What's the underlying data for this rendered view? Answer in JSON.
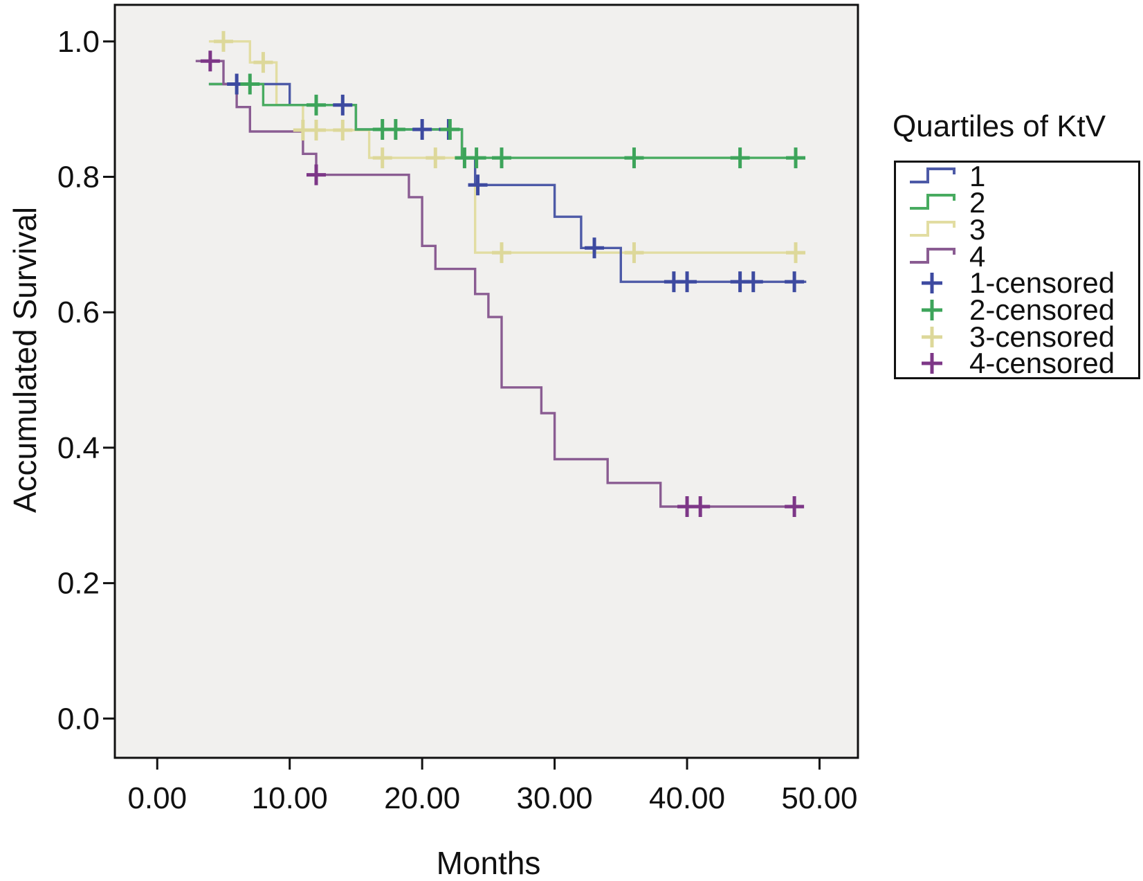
{
  "figure": {
    "y_axis_title": "Accumulated Survival",
    "x_axis_title": "Months",
    "legend_title": "Quartiles of KtV"
  },
  "chart_data": {
    "type": "line",
    "subtype": "kaplan-meier-step-survival",
    "title": "",
    "xlabel": "Months",
    "ylabel": "Accumulated Survival",
    "xlim": [
      -3.2,
      52.9
    ],
    "ylim": [
      -0.058,
      1.054
    ],
    "grid": false,
    "plot_bg": "#f1f0ee",
    "frame_color": "#111111",
    "xticks": {
      "values": [
        0,
        10,
        20,
        30,
        40,
        50
      ],
      "labels": [
        "0.00",
        "10.00",
        "20.00",
        "30.00",
        "40.00",
        "50.00"
      ]
    },
    "yticks": {
      "values": [
        0.0,
        0.2,
        0.4,
        0.6,
        0.8,
        1.0
      ],
      "labels": [
        "0.0",
        "0.2",
        "0.4",
        "0.6",
        "0.8",
        "1.0"
      ]
    },
    "legend": {
      "title": "Quartiles of KtV",
      "position": "right",
      "entries": [
        {
          "label": "1",
          "marker": "step",
          "color": "#4d5aa7"
        },
        {
          "label": "2",
          "marker": "step",
          "color": "#48ab60"
        },
        {
          "label": "3",
          "marker": "step",
          "color": "#e2dda2"
        },
        {
          "label": "4",
          "marker": "step",
          "color": "#8a5c92"
        },
        {
          "label": "1-censored",
          "marker": "plus",
          "color": "#3d4aa0"
        },
        {
          "label": "2-censored",
          "marker": "plus",
          "color": "#3da45a"
        },
        {
          "label": "3-censored",
          "marker": "plus",
          "color": "#ddd89a"
        },
        {
          "label": "4-censored",
          "marker": "plus",
          "color": "#7d3787"
        }
      ]
    },
    "series": [
      {
        "name": "1",
        "color": "#4d5aa7",
        "censor_color": "#3d4aa0",
        "points": [
          [
            3.9,
            0.937
          ],
          [
            10,
            0.906
          ],
          [
            15,
            0.87
          ],
          [
            23,
            0.828
          ],
          [
            24,
            0.788
          ],
          [
            30,
            0.741
          ],
          [
            32,
            0.695
          ],
          [
            35,
            0.645
          ],
          [
            49,
            0.645
          ]
        ],
        "censored": [
          [
            6,
            0.937
          ],
          [
            14,
            0.906
          ],
          [
            20,
            0.87
          ],
          [
            22,
            0.87
          ],
          [
            24.2,
            0.788
          ],
          [
            33,
            0.695
          ],
          [
            39,
            0.645
          ],
          [
            40,
            0.645
          ],
          [
            44,
            0.645
          ],
          [
            45,
            0.645
          ],
          [
            48.1,
            0.645
          ]
        ]
      },
      {
        "name": "2",
        "color": "#48ab60",
        "censor_color": "#3da45a",
        "points": [
          [
            3.9,
            0.937
          ],
          [
            8,
            0.906
          ],
          [
            15,
            0.87
          ],
          [
            23,
            0.828
          ],
          [
            48.4,
            0.828
          ]
        ],
        "censored": [
          [
            7,
            0.937
          ],
          [
            12,
            0.906
          ],
          [
            17,
            0.87
          ],
          [
            18,
            0.87
          ],
          [
            22.1,
            0.87
          ],
          [
            23.2,
            0.828
          ],
          [
            24.1,
            0.828
          ],
          [
            26,
            0.828
          ],
          [
            36,
            0.828
          ],
          [
            44,
            0.828
          ],
          [
            48.2,
            0.828
          ]
        ]
      },
      {
        "name": "3",
        "color": "#e2dda2",
        "censor_color": "#ddd89a",
        "points": [
          [
            3.9,
            1.0
          ],
          [
            7,
            0.969
          ],
          [
            9,
            0.906
          ],
          [
            11,
            0.869
          ],
          [
            16,
            0.828
          ],
          [
            24,
            0.688
          ],
          [
            48.4,
            0.688
          ]
        ],
        "censored": [
          [
            5,
            1.0
          ],
          [
            8,
            0.969
          ],
          [
            11,
            0.869
          ],
          [
            12,
            0.869
          ],
          [
            14,
            0.869
          ],
          [
            17,
            0.828
          ],
          [
            21,
            0.828
          ],
          [
            26,
            0.688
          ],
          [
            36,
            0.688
          ],
          [
            48.2,
            0.688
          ]
        ]
      },
      {
        "name": "4",
        "color": "#8a5c92",
        "censor_color": "#7d3787",
        "points": [
          [
            2.9,
            0.971
          ],
          [
            5,
            0.937
          ],
          [
            6,
            0.903
          ],
          [
            7,
            0.867
          ],
          [
            11,
            0.834
          ],
          [
            12,
            0.803
          ],
          [
            19,
            0.77
          ],
          [
            20,
            0.698
          ],
          [
            21,
            0.664
          ],
          [
            24,
            0.627
          ],
          [
            25,
            0.593
          ],
          [
            26,
            0.489
          ],
          [
            29,
            0.451
          ],
          [
            30,
            0.383
          ],
          [
            34,
            0.348
          ],
          [
            38,
            0.313
          ],
          [
            48.2,
            0.313
          ]
        ],
        "censored": [
          [
            4,
            0.971
          ],
          [
            12,
            0.803
          ],
          [
            40,
            0.313
          ],
          [
            41,
            0.313
          ],
          [
            48.1,
            0.313
          ]
        ]
      }
    ]
  }
}
